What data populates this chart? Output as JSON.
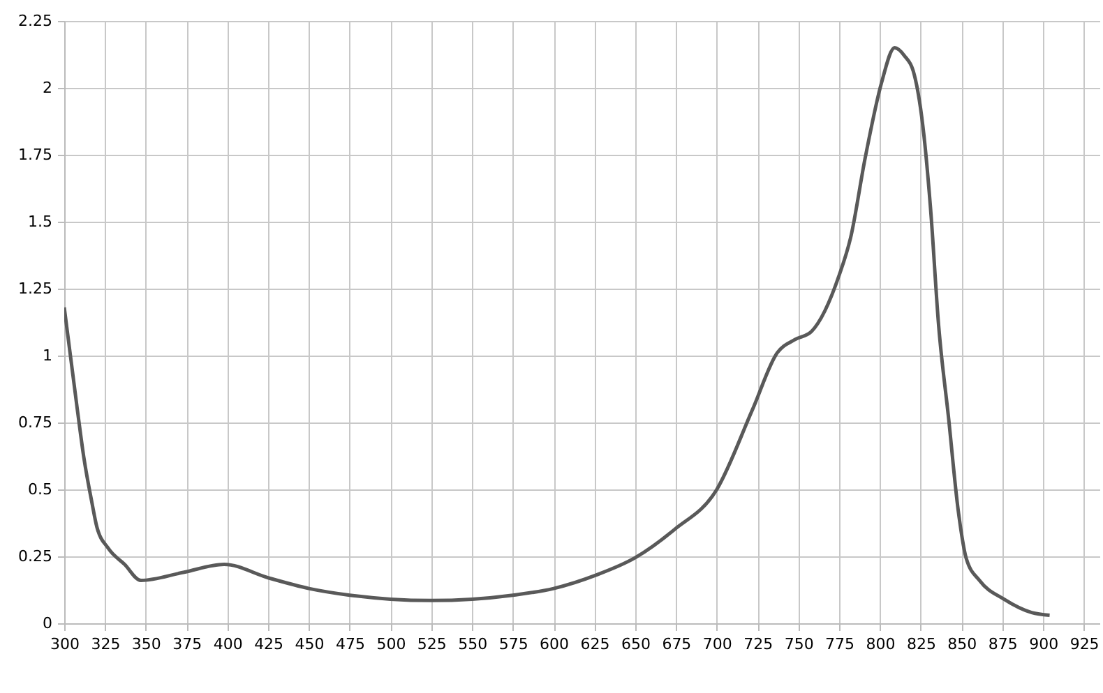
{
  "chart_data": {
    "type": "line",
    "x": [
      300,
      308,
      312,
      317,
      320,
      327,
      337,
      347,
      373,
      398,
      425,
      450,
      475,
      500,
      525,
      550,
      575,
      600,
      626,
      650,
      674,
      700,
      722,
      737,
      748,
      758,
      775,
      782,
      791,
      801,
      809,
      815,
      821,
      827,
      831,
      836,
      842,
      848,
      853,
      861,
      876,
      893,
      904
    ],
    "series": [
      {
        "color": "#595959",
        "values": [
          1.18,
          0.8,
          0.62,
          0.45,
          0.36,
          0.28,
          0.22,
          0.16,
          0.19,
          0.22,
          0.17,
          0.13,
          0.105,
          0.09,
          0.085,
          0.09,
          0.105,
          0.13,
          0.18,
          0.245,
          0.35,
          0.5,
          0.8,
          1.01,
          1.06,
          1.09,
          1.3,
          1.44,
          1.74,
          2.02,
          2.15,
          2.12,
          2.05,
          1.82,
          1.55,
          1.11,
          0.77,
          0.42,
          0.24,
          0.16,
          0.09,
          0.04,
          0.03
        ]
      }
    ],
    "xlim": [
      300,
      935
    ],
    "xticks": [
      300,
      325,
      350,
      375,
      400,
      425,
      450,
      475,
      500,
      525,
      550,
      575,
      600,
      625,
      650,
      675,
      700,
      725,
      750,
      775,
      800,
      825,
      850,
      875,
      900,
      925
    ],
    "ylim": [
      0,
      2.25
    ],
    "yticks": [
      0,
      0.25,
      0.5,
      0.75,
      1,
      1.25,
      1.5,
      1.75,
      2,
      2.25
    ],
    "grid": true,
    "line_style": "solid"
  }
}
